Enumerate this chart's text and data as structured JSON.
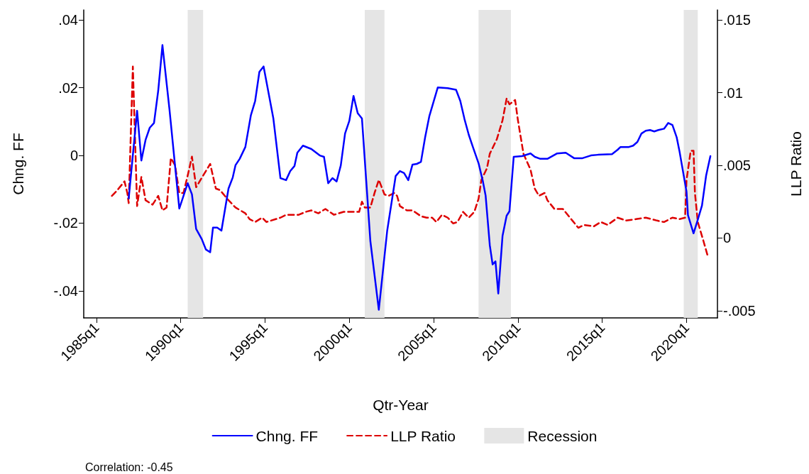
{
  "chart_data": {
    "type": "line",
    "xlabel": "Qtr-Year",
    "ylabel": "Chng. FF",
    "y2label": "LLP Ratio",
    "xlim": [
      "1984-04",
      "2021-11"
    ],
    "xticks": [
      {
        "value": "1985-01",
        "label": "1985q1"
      },
      {
        "value": "1990-01",
        "label": "1990q1"
      },
      {
        "value": "1995-01",
        "label": "1995q1"
      },
      {
        "value": "2000-01",
        "label": "2000q1"
      },
      {
        "value": "2005-01",
        "label": "2005q1"
      },
      {
        "value": "2010-01",
        "label": "2010q1"
      },
      {
        "value": "2015-01",
        "label": "2015q1"
      },
      {
        "value": "2020-01",
        "label": "2020q1"
      }
    ],
    "ylim": [
      -0.048,
      0.043
    ],
    "yticks": [
      {
        "value": -0.04,
        "label": "-.04"
      },
      {
        "value": -0.02,
        "label": "-.02"
      },
      0,
      {
        "value": 0.02,
        "label": ".02"
      },
      {
        "value": 0.04,
        "label": ".04"
      }
    ],
    "y2lim": [
      -0.0055,
      0.0157
    ],
    "y2ticks": [
      {
        "value": -0.005,
        "label": "-.005"
      },
      0,
      {
        "value": 0.005,
        "label": ".005"
      },
      {
        "value": 0.01,
        "label": ".01"
      },
      {
        "value": 0.015,
        "label": ".015"
      }
    ],
    "marker": "none",
    "legend": "bottom",
    "series": [
      {
        "name": "Chng. FF",
        "color": "#0000ff",
        "line_style": "solid",
        "x": [
          "1986-12",
          "1987-06",
          "1987-09",
          "1987-12",
          "1988-03",
          "1988-06",
          "1988-09",
          "1988-12",
          "1989-05",
          "1989-12",
          "1990-06",
          "1990-09",
          "1990-12",
          "1991-04",
          "1991-07",
          "1991-10",
          "1991-12",
          "1992-03",
          "1992-06",
          "1992-11",
          "1993-02",
          "1993-04",
          "1993-07",
          "1993-11",
          "1994-03",
          "1994-06",
          "1994-09",
          "1994-12",
          "1995-07",
          "1995-12",
          "1996-04",
          "1996-07",
          "1996-10",
          "1996-12",
          "1997-04",
          "1997-10",
          "1998-04",
          "1998-07",
          "1998-10",
          "1999-01",
          "1999-04",
          "1999-07",
          "1999-10",
          "2000-01",
          "2000-04",
          "2000-07",
          "2000-10",
          "2001-04",
          "2001-10",
          "2002-04",
          "2002-10",
          "2003-01",
          "2003-04",
          "2003-07",
          "2003-10",
          "2004-01",
          "2004-04",
          "2004-07",
          "2004-10",
          "2005-04",
          "2005-11",
          "2006-05",
          "2006-08",
          "2006-11",
          "2007-02",
          "2007-05",
          "2007-09",
          "2007-12",
          "2008-02",
          "2008-05",
          "2008-07",
          "2008-09",
          "2008-11",
          "2009-02",
          "2009-05",
          "2009-07",
          "2009-10",
          "2010-04",
          "2010-10",
          "2011-01",
          "2011-05",
          "2011-10",
          "2012-05",
          "2012-11",
          "2013-05",
          "2013-11",
          "2014-05",
          "2014-10",
          "2015-08",
          "2015-12",
          "2016-02",
          "2016-08",
          "2016-11",
          "2017-02",
          "2017-05",
          "2017-08",
          "2017-11",
          "2018-02",
          "2018-05",
          "2018-09",
          "2018-12",
          "2019-03",
          "2019-06",
          "2019-08",
          "2020-01",
          "2020-02",
          "2020-06",
          "2020-09",
          "2020-12",
          "2021-03",
          "2021-06"
        ],
        "values": [
          -0.0127,
          0.0132,
          -0.0015,
          0.0046,
          0.0082,
          0.0096,
          0.0192,
          0.0326,
          0.0138,
          -0.0157,
          -0.0082,
          -0.0115,
          -0.0217,
          -0.0247,
          -0.0278,
          -0.0286,
          -0.0213,
          -0.0213,
          -0.0222,
          -0.0098,
          -0.0065,
          -0.0029,
          -0.001,
          0.0025,
          0.0119,
          0.0161,
          0.0247,
          0.0263,
          0.0109,
          -0.0067,
          -0.0073,
          -0.0046,
          -0.0031,
          0.0008,
          0.0029,
          0.0019,
          0,
          -0.0004,
          -0.0082,
          -0.0067,
          -0.0077,
          -0.0029,
          0.0065,
          0.0102,
          0.0176,
          0.0125,
          0.0109,
          -0.0253,
          -0.0456,
          -0.0222,
          -0.0061,
          -0.0046,
          -0.0052,
          -0.0073,
          -0.0027,
          -0.0025,
          -0.0019,
          0.0054,
          0.0117,
          0.0201,
          0.0199,
          0.0194,
          0.0161,
          0.0107,
          0.0061,
          0.0025,
          -0.0023,
          -0.0075,
          -0.0119,
          -0.0265,
          -0.0322,
          -0.0313,
          -0.0408,
          -0.0238,
          -0.0178,
          -0.0165,
          -0.0004,
          -0.0002,
          0.0006,
          -0.0004,
          -0.001,
          -0.001,
          0.0006,
          0.0008,
          -0.0008,
          -0.0008,
          0.0,
          0.0002,
          0.0004,
          0.0017,
          0.0025,
          0.0025,
          0.0029,
          0.004,
          0.0065,
          0.0073,
          0.0075,
          0.0071,
          0.0075,
          0.0079,
          0.0096,
          0.009,
          0.0054,
          0.0013,
          -0.0107,
          -0.0176,
          -0.023,
          -0.019,
          -0.0148,
          -0.0059,
          -0.0002
        ]
      },
      {
        "name": "LLP Ratio",
        "color": "#dd0000",
        "line_style": "dashed",
        "axis": "y2",
        "x": [
          "1985-12",
          "1986-04",
          "1986-09",
          "1986-11",
          "1986-12",
          "1987-03",
          "1987-06",
          "1987-09",
          "1987-12",
          "1988-05",
          "1988-09",
          "1988-12",
          "1989-03",
          "1989-06",
          "1989-09",
          "1989-12",
          "1990-03",
          "1990-06",
          "1990-09",
          "1990-12",
          "1991-10",
          "1992-02",
          "1992-05",
          "1992-11",
          "1993-04",
          "1993-11",
          "1994-02",
          "1994-06",
          "1994-11",
          "1995-02",
          "1995-12",
          "1996-04",
          "1997-01",
          "1997-06",
          "1997-10",
          "1998-03",
          "1998-08",
          "1999-02",
          "1999-09",
          "2000-08",
          "2000-10",
          "2000-12",
          "2001-04",
          "2001-07",
          "2001-10",
          "2002-02",
          "2002-05",
          "2002-09",
          "2002-11",
          "2003-01",
          "2003-06",
          "2003-10",
          "2004-04",
          "2004-08",
          "2004-12",
          "2005-03",
          "2005-07",
          "2005-11",
          "2006-03",
          "2006-06",
          "2006-10",
          "2007-02",
          "2007-06",
          "2007-09",
          "2007-11",
          "2008-03",
          "2008-05",
          "2008-10",
          "2009-02",
          "2009-05",
          "2009-07",
          "2009-11",
          "2010-01",
          "2010-05",
          "2010-10",
          "2011-01",
          "2011-04",
          "2011-08",
          "2011-10",
          "2012-03",
          "2012-09",
          "2013-02",
          "2013-08",
          "2013-12",
          "2014-07",
          "2014-12",
          "2015-05",
          "2015-12",
          "2016-06",
          "2017-01",
          "2017-08",
          "2018-04",
          "2018-09",
          "2019-03",
          "2019-08",
          "2019-12",
          "2020-01",
          "2020-04",
          "2020-06",
          "2020-07",
          "2020-09",
          "2021-01",
          "2021-04",
          "2021-05"
        ],
        "values": [
          0.0029,
          0.0033,
          0.0039,
          0.0031,
          0.0024,
          0.0118,
          0.0022,
          0.0042,
          0.0026,
          0.0023,
          0.0029,
          0.0019,
          0.0021,
          0.0055,
          0.005,
          0.0031,
          0.0031,
          0.0043,
          0.0056,
          0.0035,
          0.0051,
          0.0034,
          0.0033,
          0.0026,
          0.0021,
          0.0017,
          0.0013,
          0.0011,
          0.0014,
          0.0011,
          0.0014,
          0.0016,
          0.0016,
          0.0018,
          0.0019,
          0.0017,
          0.002,
          0.0016,
          0.0018,
          0.0018,
          0.0025,
          0.0021,
          0.0021,
          0.0031,
          0.004,
          0.003,
          0.0029,
          0.0031,
          0.0029,
          0.0022,
          0.0019,
          0.0019,
          0.0015,
          0.0014,
          0.0014,
          0.0011,
          0.0016,
          0.0014,
          0.001,
          0.0011,
          0.0018,
          0.0014,
          0.0018,
          0.0027,
          0.004,
          0.0048,
          0.0058,
          0.0068,
          0.0081,
          0.0096,
          0.0092,
          0.0095,
          0.0081,
          0.0058,
          0.0047,
          0.0034,
          0.0029,
          0.0031,
          0.0026,
          0.002,
          0.002,
          0.0014,
          0.0007,
          0.0009,
          0.0008,
          0.0011,
          0.0009,
          0.0014,
          0.0012,
          0.0013,
          0.0014,
          0.0012,
          0.0011,
          0.0014,
          0.0013,
          0.0014,
          0.004,
          0.006,
          0.006,
          0.0031,
          0.0011,
          -0.0002,
          -0.0012,
          -0.0012
        ]
      }
    ],
    "bands": [
      {
        "axis": "x",
        "from": "1990-06",
        "to": "1991-05",
        "label": "Recession",
        "color": "#e5e5e5"
      },
      {
        "axis": "x",
        "from": "2000-12",
        "to": "2002-02",
        "color": "#e5e5e5"
      },
      {
        "axis": "x",
        "from": "2007-09",
        "to": "2009-08",
        "color": "#e5e5e5"
      },
      {
        "axis": "x",
        "from": "2019-11",
        "to": "2020-09",
        "color": "#e5e5e5"
      }
    ],
    "annotations": [
      "Correlation: -0.45"
    ]
  }
}
